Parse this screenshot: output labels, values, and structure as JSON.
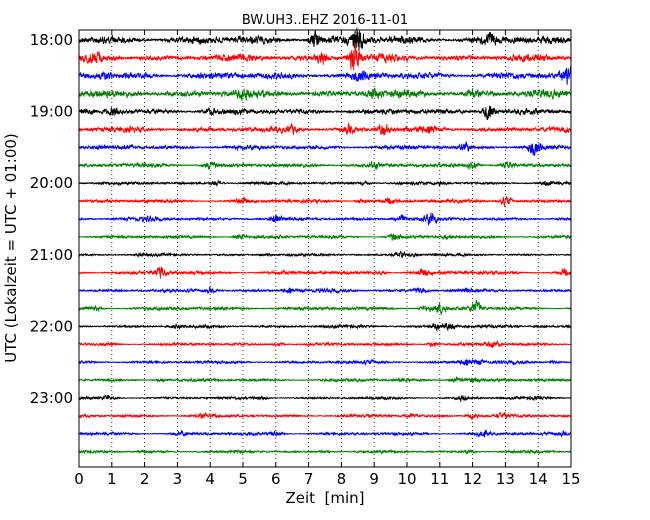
{
  "chart_data": {
    "type": "line",
    "title": "BW.UH3..EHZ 2016-11-01",
    "xlabel": "Zeit  [min]",
    "ylabel": "UTC (Lokalzeit = UTC + 01:00)",
    "xlim": [
      0,
      15
    ],
    "x_ticks": [
      "0",
      "1",
      "2",
      "3",
      "4",
      "5",
      "6",
      "7",
      "8",
      "9",
      "10",
      "11",
      "12",
      "13",
      "14",
      "15"
    ],
    "y_tick_labels": [
      "18:00",
      "19:00",
      "20:00",
      "21:00",
      "22:00",
      "23:00"
    ],
    "grid": "vertical dotted",
    "trace_interval_minutes": 15,
    "trace_start_times": [
      "18:00",
      "18:15",
      "18:30",
      "18:45",
      "19:00",
      "19:15",
      "19:30",
      "19:45",
      "20:00",
      "20:15",
      "20:30",
      "20:45",
      "21:00",
      "21:15",
      "21:30",
      "21:45",
      "22:00",
      "22:15",
      "22:30",
      "22:45",
      "23:00",
      "23:15",
      "23:30",
      "23:45"
    ],
    "trace_colors": [
      "#000000",
      "#ff0000",
      "#0000ff",
      "#008000"
    ],
    "trace_amplitude": [
      0.85,
      0.75,
      0.75,
      0.8,
      0.6,
      0.55,
      0.45,
      0.4,
      0.3,
      0.32,
      0.35,
      0.3,
      0.25,
      0.35,
      0.33,
      0.35,
      0.3,
      0.28,
      0.3,
      0.3,
      0.25,
      0.3,
      0.3,
      0.25
    ],
    "bursts": [
      [
        [
          8.5,
          1.6
        ],
        [
          12.5,
          0.6
        ],
        [
          7.2,
          0.8
        ]
      ],
      [
        [
          8.4,
          1.9
        ],
        [
          7.4,
          0.7
        ],
        [
          0.5,
          0.5
        ]
      ],
      [
        [
          14.9,
          1.1
        ],
        [
          8.6,
          0.5
        ],
        [
          0.8,
          0.4
        ]
      ],
      [
        [
          9.0,
          0.6
        ],
        [
          5.0,
          0.5
        ],
        [
          12.0,
          0.3
        ]
      ],
      [
        [
          12.5,
          1.5
        ],
        [
          1.1,
          0.7
        ],
        [
          4.0,
          0.4
        ]
      ],
      [
        [
          9.3,
          1.0
        ],
        [
          6.5,
          0.6
        ],
        [
          8.2,
          0.8
        ],
        [
          10.7,
          0.4
        ]
      ],
      [
        [
          13.9,
          1.6
        ],
        [
          11.8,
          0.8
        ],
        [
          1.5,
          0.4
        ]
      ],
      [
        [
          12.0,
          0.8
        ],
        [
          4.0,
          1.0
        ],
        [
          9.0,
          0.6
        ],
        [
          13.1,
          0.7
        ]
      ],
      [
        [
          14.3,
          0.9
        ],
        [
          4.2,
          0.7
        ],
        [
          8.7,
          0.5
        ],
        [
          11.0,
          0.5
        ]
      ],
      [
        [
          13.0,
          1.8
        ],
        [
          5.0,
          1.1
        ],
        [
          9.5,
          0.8
        ],
        [
          8.6,
          0.6
        ]
      ],
      [
        [
          10.7,
          1.6
        ],
        [
          6.0,
          0.9
        ],
        [
          9.8,
          1.2
        ],
        [
          2.1,
          0.5
        ]
      ],
      [
        [
          9.6,
          1.4
        ],
        [
          4.9,
          0.8
        ],
        [
          11.2,
          0.5
        ],
        [
          6.0,
          0.4
        ]
      ],
      [
        [
          9.8,
          1.2
        ],
        [
          10.2,
          0.6
        ],
        [
          5.7,
          0.5
        ],
        [
          1.9,
          0.4
        ]
      ],
      [
        [
          2.5,
          1.6
        ],
        [
          10.5,
          1.1
        ],
        [
          14.8,
          0.8
        ],
        [
          9.2,
          0.5
        ]
      ],
      [
        [
          6.4,
          0.9
        ],
        [
          10.4,
          0.9
        ],
        [
          4.0,
          0.8
        ],
        [
          11.8,
          0.5
        ]
      ],
      [
        [
          11.0,
          1.3
        ],
        [
          12.1,
          1.8
        ],
        [
          10.6,
          0.8
        ],
        [
          0.5,
          0.5
        ]
      ],
      [
        [
          11.3,
          1.4
        ],
        [
          10.9,
          1.0
        ],
        [
          3.0,
          0.5
        ],
        [
          14.1,
          0.4
        ]
      ],
      [
        [
          12.6,
          1.5
        ],
        [
          10.8,
          0.9
        ],
        [
          0.9,
          0.5
        ],
        [
          6.1,
          0.5
        ]
      ],
      [
        [
          11.8,
          1.2
        ],
        [
          12.2,
          0.8
        ],
        [
          14.5,
          0.4
        ],
        [
          8.8,
          0.4
        ]
      ],
      [
        [
          12.0,
          0.8
        ],
        [
          11.5,
          0.9
        ],
        [
          2.5,
          0.5
        ],
        [
          9.9,
          0.5
        ]
      ],
      [
        [
          11.7,
          1.3
        ],
        [
          0.9,
          0.8
        ],
        [
          5.6,
          0.5
        ],
        [
          13.9,
          0.4
        ]
      ],
      [
        [
          12.0,
          1.1
        ],
        [
          12.9,
          0.9
        ],
        [
          3.8,
          0.6
        ],
        [
          10.1,
          0.5
        ]
      ],
      [
        [
          12.3,
          1.2
        ],
        [
          3.1,
          0.8
        ],
        [
          6.0,
          0.7
        ],
        [
          14.7,
          0.5
        ]
      ],
      [
        [
          11.9,
          0.6
        ],
        [
          2.0,
          0.4
        ],
        [
          7.5,
          0.4
        ]
      ]
    ]
  }
}
